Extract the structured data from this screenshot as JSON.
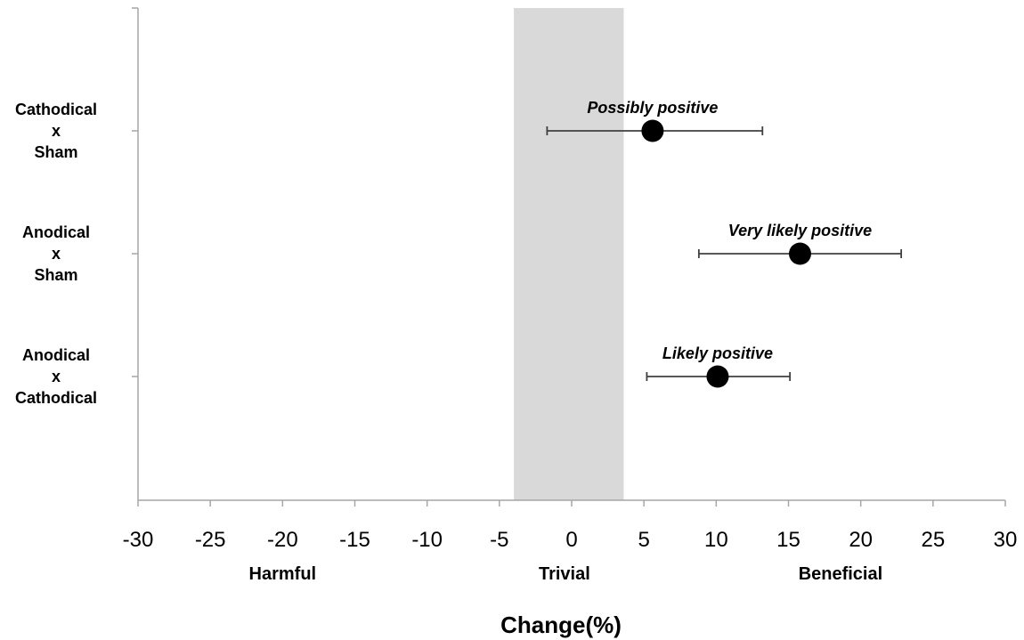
{
  "chart_data": {
    "type": "scatter",
    "subtype": "forest-plot",
    "title": "",
    "xlabel": "Change(%)",
    "ylabel": "",
    "xlim": [
      -30,
      30
    ],
    "xticks": [
      -30,
      -25,
      -20,
      -15,
      -10,
      -5,
      0,
      5,
      10,
      15,
      20,
      25,
      30
    ],
    "grid": false,
    "legend": "none",
    "trivial_band": [
      -4,
      3.6
    ],
    "region_labels": [
      {
        "text": "Harmful",
        "x": -20
      },
      {
        "text": "Trivial",
        "x": -0.5
      },
      {
        "text": "Beneficial",
        "x": 18.6
      }
    ],
    "comparisons": [
      {
        "label_lines": [
          "Cathodical",
          "x",
          "Sham"
        ],
        "mean": 5.6,
        "lower": -1.7,
        "upper": 13.2,
        "annotation": "Possibly positive"
      },
      {
        "label_lines": [
          "Anodical",
          "x",
          "Sham"
        ],
        "mean": 15.8,
        "lower": 8.8,
        "upper": 22.8,
        "annotation": "Very likely positive"
      },
      {
        "label_lines": [
          "Anodical",
          "x",
          "Cathodical"
        ],
        "mean": 10.1,
        "lower": 5.2,
        "upper": 15.1,
        "annotation": "Likely positive"
      }
    ],
    "colors": {
      "band": "#d9d9d9",
      "axis": "#a6a6a6",
      "marker": "#000000",
      "errorbar": "#404040"
    }
  }
}
